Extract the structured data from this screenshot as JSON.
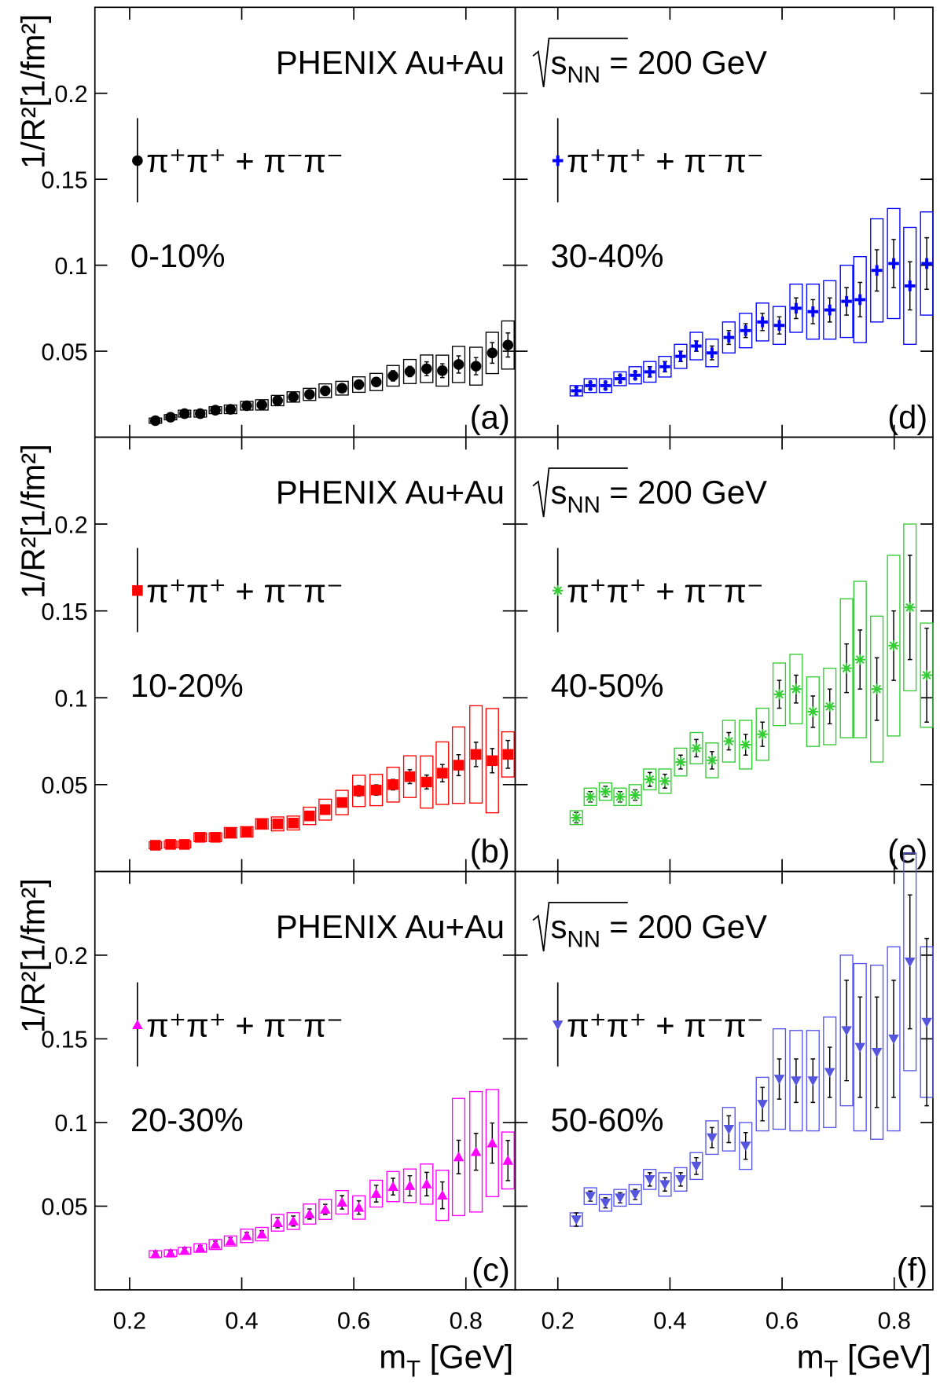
{
  "chart_data": [
    {
      "type": "scatter",
      "label": "PHENIX Au+Au",
      "series_name": "π⁺π⁺ + π⁻π⁻",
      "centrality": "0-10%",
      "panel": "(a)",
      "ylabel": "1/R²[1/fm²]",
      "color": "#000000",
      "box_color": "#000000",
      "marker": "circle",
      "x": [
        0.246,
        0.273,
        0.298,
        0.326,
        0.353,
        0.38,
        0.409,
        0.436,
        0.464,
        0.492,
        0.521,
        0.549,
        0.579,
        0.609,
        0.64,
        0.67,
        0.7,
        0.73,
        0.758,
        0.787,
        0.818,
        0.847,
        0.875
      ],
      "values": [
        0.0096,
        0.0116,
        0.0137,
        0.0137,
        0.0157,
        0.0162,
        0.0183,
        0.0188,
        0.0213,
        0.0234,
        0.0249,
        0.027,
        0.0285,
        0.0306,
        0.0321,
        0.0357,
        0.0382,
        0.0398,
        0.0387,
        0.0423,
        0.0413,
        0.049,
        0.0536
      ],
      "errors": [
        0.001,
        0.001,
        0.001,
        0.001,
        0.001,
        0.001,
        0.001,
        0.0015,
        0.0015,
        0.0015,
        0.0015,
        0.002,
        0.002,
        0.002,
        0.0025,
        0.003,
        0.003,
        0.004,
        0.004,
        0.005,
        0.005,
        0.006,
        0.007
      ],
      "sys": [
        0.0015,
        0.0015,
        0.002,
        0.002,
        0.002,
        0.0025,
        0.0025,
        0.003,
        0.003,
        0.003,
        0.0035,
        0.004,
        0.004,
        0.0045,
        0.005,
        0.006,
        0.007,
        0.008,
        0.009,
        0.0105,
        0.011,
        0.012,
        0.014
      ],
      "xlim": [
        0.138,
        0.888
      ],
      "ylim": [
        0,
        0.25
      ],
      "xticks": [
        0.2,
        0.4,
        0.6,
        0.8
      ],
      "yticks": [
        0.05,
        0.1,
        0.15,
        0.2
      ],
      "show_xtick_labels": false,
      "show_ytick_labels": true
    },
    {
      "type": "scatter",
      "energy": {
        "symbol": "s",
        "subscript": "NN",
        "value": "= 200 GeV"
      },
      "series_name": "π⁺π⁺ + π⁻π⁻",
      "centrality": "30-40%",
      "panel": "(d)",
      "color": "#0000ff",
      "box_color": "#0000ff",
      "marker": "plus",
      "x": [
        0.233,
        0.258,
        0.285,
        0.311,
        0.338,
        0.364,
        0.391,
        0.419,
        0.447,
        0.475,
        0.505,
        0.535,
        0.565,
        0.595,
        0.625,
        0.655,
        0.685,
        0.715,
        0.739,
        0.769,
        0.799,
        0.828,
        0.858
      ],
      "values": [
        0.027,
        0.03,
        0.03,
        0.034,
        0.036,
        0.038,
        0.041,
        0.047,
        0.053,
        0.049,
        0.058,
        0.062,
        0.067,
        0.065,
        0.075,
        0.073,
        0.074,
        0.079,
        0.08,
        0.097,
        0.101,
        0.088,
        0.101
      ],
      "errors": [
        0.002,
        0.002,
        0.002,
        0.002,
        0.002,
        0.003,
        0.003,
        0.003,
        0.003,
        0.004,
        0.004,
        0.004,
        0.005,
        0.005,
        0.006,
        0.007,
        0.007,
        0.008,
        0.01,
        0.012,
        0.014,
        0.014,
        0.015
      ],
      "sys": [
        0.003,
        0.004,
        0.004,
        0.004,
        0.005,
        0.006,
        0.006,
        0.007,
        0.008,
        0.008,
        0.009,
        0.01,
        0.011,
        0.011,
        0.014,
        0.016,
        0.017,
        0.021,
        0.025,
        0.03,
        0.032,
        0.034,
        0.03
      ],
      "xlim": [
        0.124,
        0.869
      ],
      "ylim": [
        0,
        0.25
      ],
      "xticks": [
        0.2,
        0.4,
        0.6,
        0.8
      ],
      "yticks": [
        0.05,
        0.1,
        0.15,
        0.2
      ],
      "show_xtick_labels": false,
      "show_ytick_labels": false
    },
    {
      "type": "scatter",
      "label": "PHENIX Au+Au",
      "series_name": "π⁺π⁺ + π⁻π⁻",
      "centrality": "10-20%",
      "panel": "(b)",
      "ylabel": "1/R²[1/fm²]",
      "color": "#ff0000",
      "box_color": "#ff0000",
      "marker": "square",
      "x": [
        0.246,
        0.273,
        0.298,
        0.326,
        0.353,
        0.38,
        0.409,
        0.436,
        0.464,
        0.492,
        0.521,
        0.549,
        0.579,
        0.609,
        0.64,
        0.67,
        0.7,
        0.73,
        0.758,
        0.787,
        0.818,
        0.847,
        0.875
      ],
      "values": [
        0.0151,
        0.0156,
        0.0156,
        0.0197,
        0.0197,
        0.0223,
        0.0228,
        0.0274,
        0.0274,
        0.0279,
        0.032,
        0.0356,
        0.0397,
        0.0464,
        0.0469,
        0.05,
        0.0546,
        0.0515,
        0.0566,
        0.0612,
        0.0674,
        0.0638,
        0.0674
      ],
      "errors": [
        0.001,
        0.001,
        0.001,
        0.001,
        0.001,
        0.001,
        0.0015,
        0.0015,
        0.0015,
        0.0015,
        0.002,
        0.002,
        0.002,
        0.003,
        0.003,
        0.003,
        0.004,
        0.004,
        0.005,
        0.006,
        0.007,
        0.007,
        0.008
      ],
      "sys": [
        0.002,
        0.002,
        0.002,
        0.0025,
        0.0025,
        0.003,
        0.003,
        0.003,
        0.004,
        0.004,
        0.005,
        0.006,
        0.007,
        0.009,
        0.009,
        0.01,
        0.012,
        0.015,
        0.018,
        0.022,
        0.028,
        0.03,
        0.013
      ],
      "xlim": [
        0.138,
        0.888
      ],
      "ylim": [
        0,
        0.25
      ],
      "xticks": [
        0.2,
        0.4,
        0.6,
        0.8
      ],
      "yticks": [
        0.05,
        0.1,
        0.15,
        0.2
      ],
      "show_xtick_labels": false,
      "show_ytick_labels": true
    },
    {
      "type": "scatter",
      "energy": {
        "symbol": "s",
        "subscript": "NN",
        "value": "= 200 GeV"
      },
      "series_name": "π⁺π⁺ + π⁻π⁻",
      "centrality": "40-50%",
      "panel": "(e)",
      "color": "#33cc33",
      "box_color": "#33cc33",
      "marker": "star",
      "x": [
        0.233,
        0.258,
        0.285,
        0.311,
        0.338,
        0.364,
        0.391,
        0.419,
        0.447,
        0.475,
        0.505,
        0.535,
        0.565,
        0.595,
        0.625,
        0.655,
        0.685,
        0.715,
        0.739,
        0.769,
        0.799,
        0.828,
        0.858
      ],
      "values": [
        0.031,
        0.043,
        0.046,
        0.043,
        0.044,
        0.053,
        0.052,
        0.063,
        0.071,
        0.064,
        0.075,
        0.073,
        0.079,
        0.102,
        0.105,
        0.092,
        0.095,
        0.117,
        0.122,
        0.105,
        0.13,
        0.152,
        0.113
      ],
      "errors": [
        0.003,
        0.003,
        0.003,
        0.003,
        0.003,
        0.004,
        0.004,
        0.004,
        0.005,
        0.005,
        0.005,
        0.006,
        0.007,
        0.008,
        0.008,
        0.009,
        0.01,
        0.014,
        0.017,
        0.018,
        0.02,
        0.03,
        0.027
      ],
      "sys": [
        0.004,
        0.005,
        0.005,
        0.005,
        0.006,
        0.006,
        0.007,
        0.008,
        0.009,
        0.01,
        0.012,
        0.014,
        0.015,
        0.018,
        0.02,
        0.02,
        0.022,
        0.04,
        0.045,
        0.042,
        0.052,
        0.048,
        0.03
      ],
      "xlim": [
        0.124,
        0.869
      ],
      "ylim": [
        0,
        0.25
      ],
      "xticks": [
        0.2,
        0.4,
        0.6,
        0.8
      ],
      "yticks": [
        0.05,
        0.1,
        0.15,
        0.2
      ],
      "show_xtick_labels": false,
      "show_ytick_labels": false
    },
    {
      "type": "scatter",
      "label": "PHENIX Au+Au",
      "series_name": "π⁺π⁺ + π⁻π⁻",
      "centrality": "20-30%",
      "panel": "(c)",
      "ylabel": "1/R²[1/fm²]",
      "xlabel": {
        "main": "m",
        "sub": "T",
        "unit": " [GeV]"
      },
      "color": "#ff00ff",
      "box_color": "#ff00ff",
      "marker": "triangle-up",
      "x": [
        0.246,
        0.273,
        0.298,
        0.326,
        0.353,
        0.38,
        0.409,
        0.436,
        0.464,
        0.492,
        0.521,
        0.549,
        0.579,
        0.609,
        0.64,
        0.67,
        0.7,
        0.73,
        0.758,
        0.787,
        0.818,
        0.847,
        0.875
      ],
      "values": [
        0.0214,
        0.0219,
        0.0234,
        0.025,
        0.0271,
        0.0292,
        0.0323,
        0.0333,
        0.0401,
        0.0411,
        0.0453,
        0.0481,
        0.0523,
        0.0492,
        0.0575,
        0.0617,
        0.0622,
        0.0632,
        0.0565,
        0.0794,
        0.0825,
        0.0877,
        0.0773
      ],
      "errors": [
        0.0015,
        0.0015,
        0.0015,
        0.0015,
        0.002,
        0.002,
        0.002,
        0.002,
        0.003,
        0.003,
        0.003,
        0.003,
        0.004,
        0.004,
        0.005,
        0.005,
        0.006,
        0.007,
        0.008,
        0.01,
        0.011,
        0.012,
        0.012
      ],
      "sys": [
        0.002,
        0.002,
        0.002,
        0.0025,
        0.003,
        0.003,
        0.004,
        0.004,
        0.005,
        0.005,
        0.006,
        0.006,
        0.007,
        0.007,
        0.008,
        0.009,
        0.01,
        0.012,
        0.015,
        0.035,
        0.036,
        0.032,
        0.017
      ],
      "xlim": [
        0.138,
        0.888
      ],
      "ylim": [
        0,
        0.25
      ],
      "xticks": [
        0.2,
        0.4,
        0.6,
        0.8
      ],
      "yticks": [
        0.05,
        0.1,
        0.15,
        0.2
      ],
      "show_xtick_labels": true,
      "show_ytick_labels": true
    },
    {
      "type": "scatter",
      "energy": {
        "symbol": "s",
        "subscript": "NN",
        "value": "= 200 GeV"
      },
      "series_name": "π⁺π⁺ + π⁻π⁻",
      "centrality": "50-60%",
      "panel": "(f)",
      "xlabel": {
        "main": "m",
        "sub": "T",
        "unit": " [GeV]"
      },
      "color": "#5555dd",
      "box_color": "#5555ee",
      "marker": "triangle-down",
      "x": [
        0.233,
        0.258,
        0.285,
        0.311,
        0.338,
        0.364,
        0.391,
        0.419,
        0.447,
        0.475,
        0.505,
        0.535,
        0.565,
        0.595,
        0.625,
        0.655,
        0.685,
        0.715,
        0.739,
        0.769,
        0.799,
        0.828,
        0.858
      ],
      "values": [
        0.042,
        0.056,
        0.052,
        0.055,
        0.057,
        0.066,
        0.063,
        0.066,
        0.074,
        0.091,
        0.096,
        0.086,
        0.111,
        0.126,
        0.125,
        0.125,
        0.13,
        0.155,
        0.145,
        0.142,
        0.15,
        0.196,
        0.16
      ],
      "errors": [
        0.004,
        0.003,
        0.003,
        0.003,
        0.003,
        0.004,
        0.004,
        0.004,
        0.005,
        0.006,
        0.008,
        0.008,
        0.01,
        0.012,
        0.013,
        0.013,
        0.015,
        0.03,
        0.03,
        0.033,
        0.035,
        0.04,
        0.05
      ],
      "sys": [
        0.004,
        0.005,
        0.005,
        0.005,
        0.006,
        0.006,
        0.007,
        0.007,
        0.008,
        0.01,
        0.013,
        0.014,
        0.016,
        0.03,
        0.03,
        0.03,
        0.033,
        0.045,
        0.05,
        0.052,
        0.055,
        0.065,
        0.045
      ],
      "xlim": [
        0.124,
        0.869
      ],
      "ylim": [
        0,
        0.25
      ],
      "xticks": [
        0.2,
        0.4,
        0.6,
        0.8
      ],
      "yticks": [
        0.05,
        0.1,
        0.15,
        0.2
      ],
      "show_xtick_labels": true,
      "show_ytick_labels": false
    }
  ]
}
